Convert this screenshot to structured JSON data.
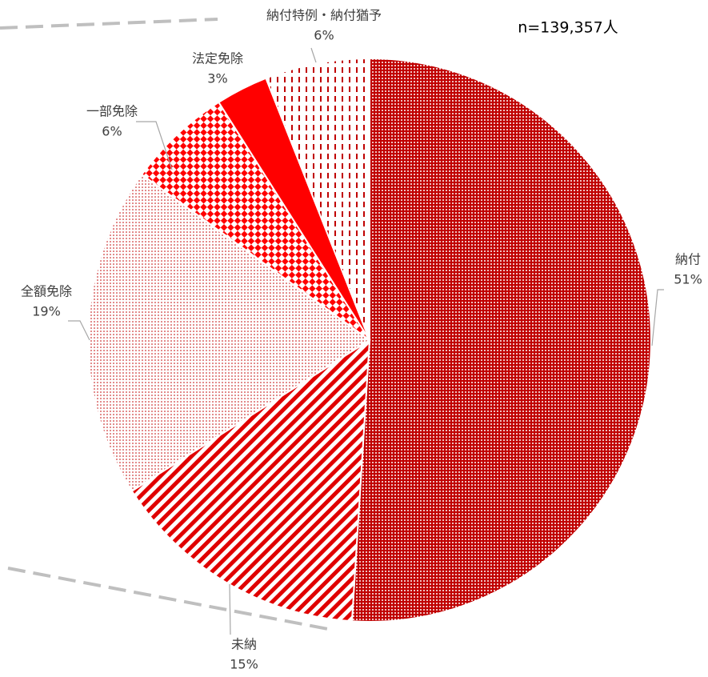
{
  "chart_data": {
    "type": "pie",
    "annotation": "n=139,357人",
    "categories": [
      "納付",
      "未納",
      "全額免除",
      "一部免除",
      "法定免除",
      "納付特例・納付猶予"
    ],
    "values": [
      51,
      15,
      19,
      6,
      3,
      6
    ],
    "value_labels": [
      "51%",
      "15%",
      "19%",
      "6%",
      "3%",
      "6%"
    ],
    "colors": [
      "#c00000",
      "#e00000",
      "#c00000",
      "#ff0000",
      "#ff0000",
      "#c00000"
    ]
  }
}
